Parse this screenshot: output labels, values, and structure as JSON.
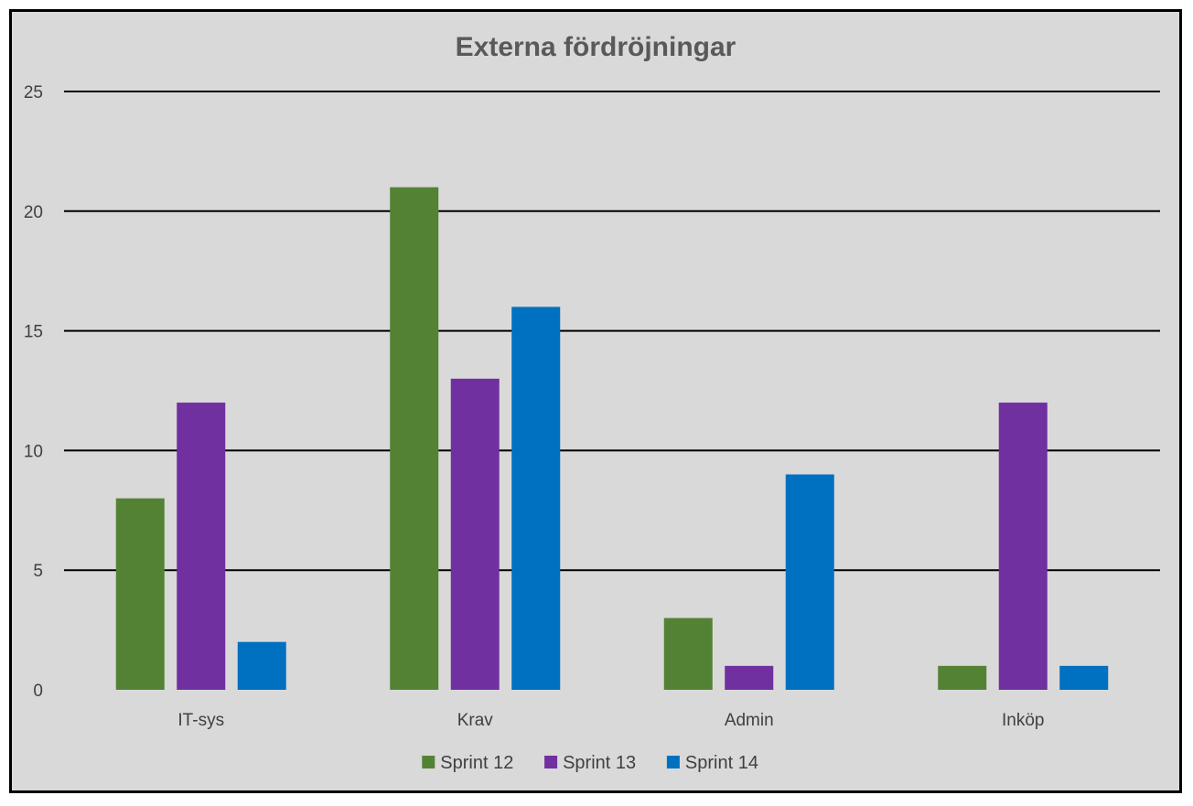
{
  "chart_data": {
    "type": "bar",
    "title": "Externa fördröjningar",
    "xlabel": "",
    "ylabel": "",
    "categories": [
      "IT-sys",
      "Krav",
      "Admin",
      "Inköp"
    ],
    "series": [
      {
        "name": "Sprint 12",
        "color": "#548235",
        "values": [
          8,
          21,
          3,
          1
        ]
      },
      {
        "name": "Sprint 13",
        "color": "#7030a0",
        "values": [
          12,
          13,
          1,
          12
        ]
      },
      {
        "name": "Sprint 14",
        "color": "#0070c0",
        "values": [
          2,
          16,
          9,
          1
        ]
      }
    ],
    "ylim": [
      0,
      25
    ],
    "yticks": [
      0,
      5,
      10,
      15,
      20,
      25
    ],
    "grid": true,
    "legend_position": "bottom"
  }
}
